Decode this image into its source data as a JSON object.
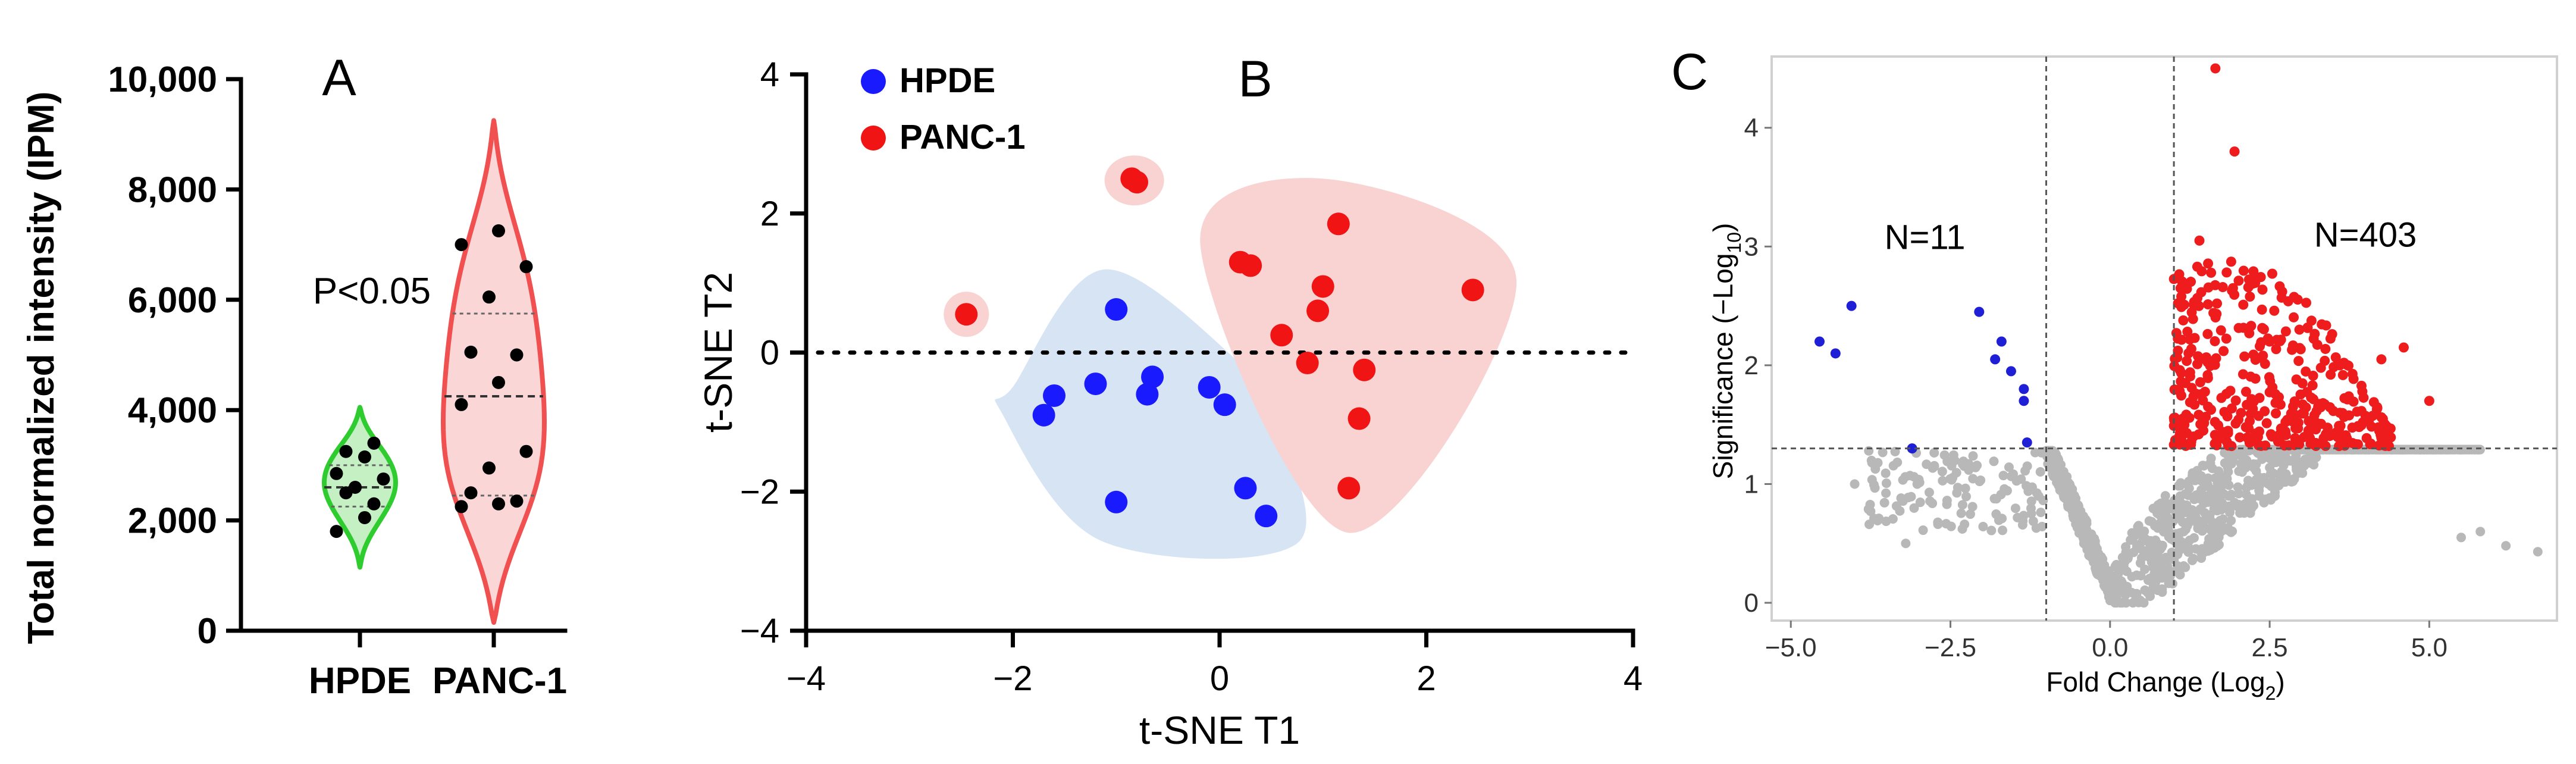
{
  "chart_data": [
    {
      "type": "violin",
      "panel_label": "A",
      "ylabel": "Total normalized intensity (IPM)",
      "categories": [
        "HPDE",
        "PANC-1"
      ],
      "ylim": [
        0,
        10000
      ],
      "yticks": [
        0,
        2000,
        4000,
        6000,
        8000,
        10000
      ],
      "ytick_labels": [
        "0",
        "2,000",
        "4,000",
        "6,000",
        "8,000",
        "10,000"
      ],
      "annotation": "P<0.05",
      "colors": {
        "HPDE": "#2ecc2e",
        "PANC-1": "#f05050"
      },
      "violin_range": {
        "HPDE": [
          1150,
          4050
        ],
        "PANC-1": [
          150,
          9250
        ]
      },
      "quartiles": {
        "HPDE": [
          2250,
          2600,
          3000
        ],
        "PANC-1": [
          2450,
          4250,
          5750
        ]
      },
      "series": [
        {
          "name": "HPDE",
          "values": [
            1800,
            2050,
            2300,
            2500,
            2600,
            2750,
            2850,
            3150,
            3400,
            3250
          ]
        },
        {
          "name": "PANC-1",
          "values": [
            2250,
            2300,
            2350,
            2500,
            2950,
            3250,
            4100,
            4500,
            5000,
            5050,
            6050,
            6600,
            7000,
            7250
          ]
        }
      ]
    },
    {
      "type": "scatter",
      "panel_label": "B",
      "xlabel": "t-SNE T1",
      "ylabel": "t-SNE T2",
      "xlim": [
        -4,
        4
      ],
      "ylim": [
        -4,
        4
      ],
      "xticks": [
        -4,
        -2,
        0,
        2,
        4
      ],
      "yticks": [
        -4,
        -2,
        0,
        2,
        4
      ],
      "hline": 0,
      "series": [
        {
          "name": "HPDE",
          "color": "#1a1aff",
          "hull_color": "#d6e4f4",
          "points": [
            [
              -1.0,
              0.62
            ],
            [
              -1.6,
              -0.62
            ],
            [
              -1.2,
              -0.45
            ],
            [
              -1.7,
              -0.9
            ],
            [
              -0.65,
              -0.35
            ],
            [
              -0.7,
              -0.6
            ],
            [
              -0.1,
              -0.5
            ],
            [
              0.05,
              -0.75
            ],
            [
              -1.0,
              -2.15
            ],
            [
              0.25,
              -1.95
            ],
            [
              0.45,
              -2.35
            ]
          ]
        },
        {
          "name": "PANC-1",
          "color": "#f01414",
          "hull_color": "#f9d2d2",
          "points": [
            [
              -2.45,
              0.55
            ],
            [
              -0.85,
              2.5
            ],
            [
              -0.8,
              2.45
            ],
            [
              0.2,
              1.3
            ],
            [
              0.3,
              1.25
            ],
            [
              1.15,
              1.85
            ],
            [
              2.45,
              0.9
            ],
            [
              1.0,
              0.95
            ],
            [
              0.95,
              0.6
            ],
            [
              0.6,
              0.25
            ],
            [
              0.85,
              -0.15
            ],
            [
              1.4,
              -0.25
            ],
            [
              1.35,
              -0.95
            ],
            [
              1.25,
              -1.95
            ]
          ]
        }
      ]
    },
    {
      "type": "scatter",
      "panel_label": "C",
      "xlabel_main": "Fold Change (Log",
      "xlabel_sub": "2",
      "xlabel_end": ")",
      "ylabel_main": "Significance (−Log",
      "ylabel_sub": "10",
      "ylabel_end": ")",
      "xticks": [
        -5.0,
        -2.5,
        0.0,
        2.5,
        5.0
      ],
      "xtick_labels": [
        "−5.0",
        "−2.5",
        "0.0",
        "2.5",
        "5.0"
      ],
      "yticks": [
        0,
        1,
        2,
        3,
        4
      ],
      "xlim": [
        -5.3,
        7.0
      ],
      "ylim": [
        -0.15,
        4.6
      ],
      "vlines": [
        -1,
        1
      ],
      "hline": 1.3,
      "annotations": [
        {
          "text": "N=11"
        },
        {
          "text": "N=403"
        }
      ],
      "series_colors": {
        "down": "#1f1fd6",
        "up": "#ee1c1c",
        "ns": "#b8b8b8"
      },
      "down_points": [
        [
          -4.55,
          2.2
        ],
        [
          -4.3,
          2.1
        ],
        [
          -4.05,
          2.5
        ],
        [
          -3.1,
          1.3
        ],
        [
          -2.05,
          2.45
        ],
        [
          -1.8,
          2.05
        ],
        [
          -1.7,
          2.2
        ],
        [
          -1.55,
          1.95
        ],
        [
          -1.35,
          1.8
        ],
        [
          -1.35,
          1.7
        ],
        [
          -1.3,
          1.35
        ]
      ],
      "up_highlights": [
        [
          1.65,
          4.5
        ],
        [
          1.95,
          3.8
        ],
        [
          1.4,
          3.05
        ],
        [
          4.6,
          2.15
        ],
        [
          5.0,
          1.7
        ],
        [
          4.25,
          2.05
        ],
        [
          3.6,
          1.6
        ]
      ],
      "up_cluster": {
        "count": 396,
        "x_range": [
          1.0,
          4.4
        ],
        "y_range": [
          1.32,
          2.9
        ]
      },
      "ns_cloud": {
        "count": 1600,
        "x_range": [
          -3.8,
          6.8
        ],
        "y_range": [
          0.0,
          1.3
        ]
      }
    }
  ]
}
